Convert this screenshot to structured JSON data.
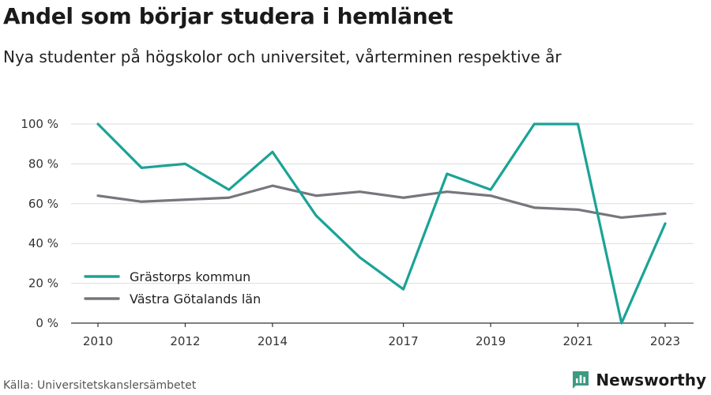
{
  "title": "Andel som börjar studera i hemlänet",
  "subtitle": "Nya studenter på högskolor och universitet, vårterminen respektive år",
  "source": "Källa: Universitetskanslersämbetet",
  "brand": {
    "name": "Newsworthy",
    "icon": "bar-chart-icon",
    "color": "#3d9a83"
  },
  "colors": {
    "series_1": "#1aa396",
    "series_2": "#77767c",
    "grid": "#dcdcdc",
    "axis": "#333333"
  },
  "chart_data": {
    "type": "line",
    "x": [
      2010,
      2011,
      2012,
      2013,
      2014,
      2015,
      2016,
      2017,
      2018,
      2019,
      2020,
      2021,
      2022,
      2023
    ],
    "x_tick_labels": [
      "2010",
      "2012",
      "2014",
      "2017",
      "2019",
      "2021",
      "2023"
    ],
    "y_tick_labels": [
      "0 %",
      "20 %",
      "40 %",
      "60 %",
      "80 %",
      "100 %"
    ],
    "ylim": [
      0,
      100
    ],
    "grid": true,
    "legend_position": "bottom-left",
    "series": [
      {
        "name": "Grästorps kommun",
        "values": [
          100,
          78,
          80,
          67,
          86,
          54,
          33,
          17,
          75,
          67,
          100,
          100,
          0,
          50
        ]
      },
      {
        "name": "Västra Götalands län",
        "values": [
          64,
          61,
          62,
          63,
          69,
          64,
          66,
          63,
          66,
          64,
          58,
          57,
          53,
          55
        ]
      }
    ]
  }
}
